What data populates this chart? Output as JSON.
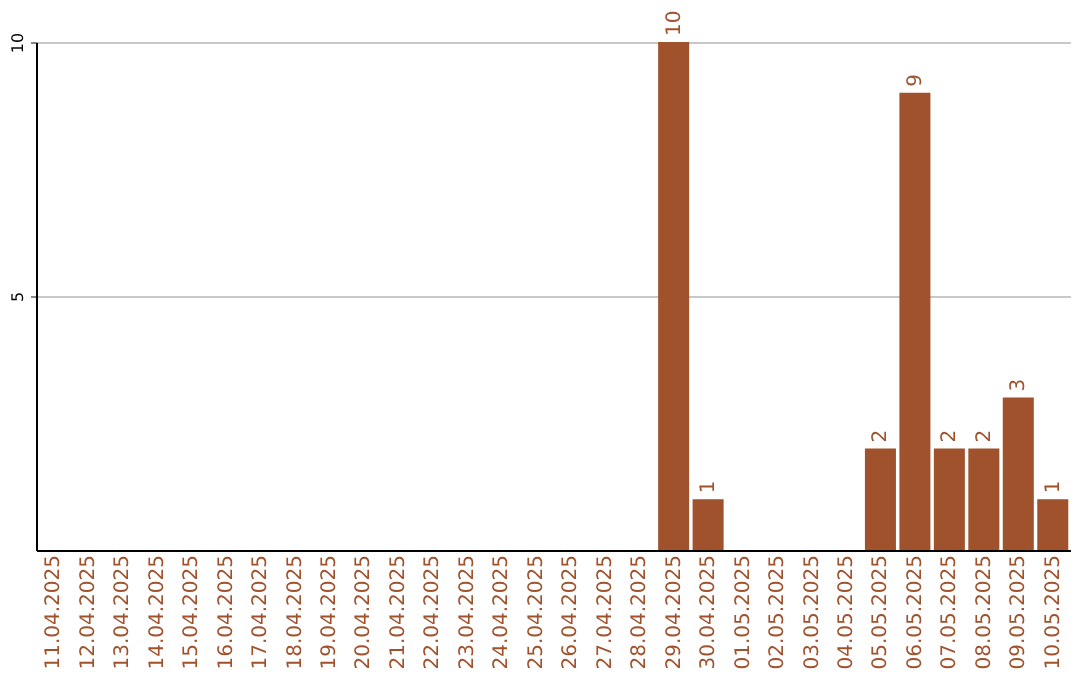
{
  "chart_data": {
    "type": "bar",
    "categories": [
      "11.04.2025",
      "12.04.2025",
      "13.04.2025",
      "14.04.2025",
      "15.04.2025",
      "16.04.2025",
      "17.04.2025",
      "18.04.2025",
      "19.04.2025",
      "20.04.2025",
      "21.04.2025",
      "22.04.2025",
      "23.04.2025",
      "24.04.2025",
      "25.04.2025",
      "26.04.2025",
      "27.04.2025",
      "28.04.2025",
      "29.04.2025",
      "30.04.2025",
      "01.05.2025",
      "02.05.2025",
      "03.05.2025",
      "04.05.2025",
      "05.05.2025",
      "06.05.2025",
      "07.05.2025",
      "08.05.2025",
      "09.05.2025",
      "10.05.2025"
    ],
    "values": [
      0,
      0,
      0,
      0,
      0,
      0,
      0,
      0,
      0,
      0,
      0,
      0,
      0,
      0,
      0,
      0,
      0,
      0,
      10,
      1,
      0,
      0,
      0,
      0,
      2,
      9,
      2,
      2,
      3,
      1
    ],
    "value_labels": [
      null,
      null,
      null,
      null,
      null,
      null,
      null,
      null,
      null,
      null,
      null,
      null,
      null,
      null,
      null,
      null,
      null,
      null,
      "10",
      "1",
      null,
      null,
      null,
      null,
      "2",
      "9",
      "2",
      "2",
      "3",
      "1"
    ],
    "color": "#a0522d",
    "ylim": [
      0,
      10
    ],
    "yticks": [
      5,
      10
    ],
    "grid": "y"
  }
}
